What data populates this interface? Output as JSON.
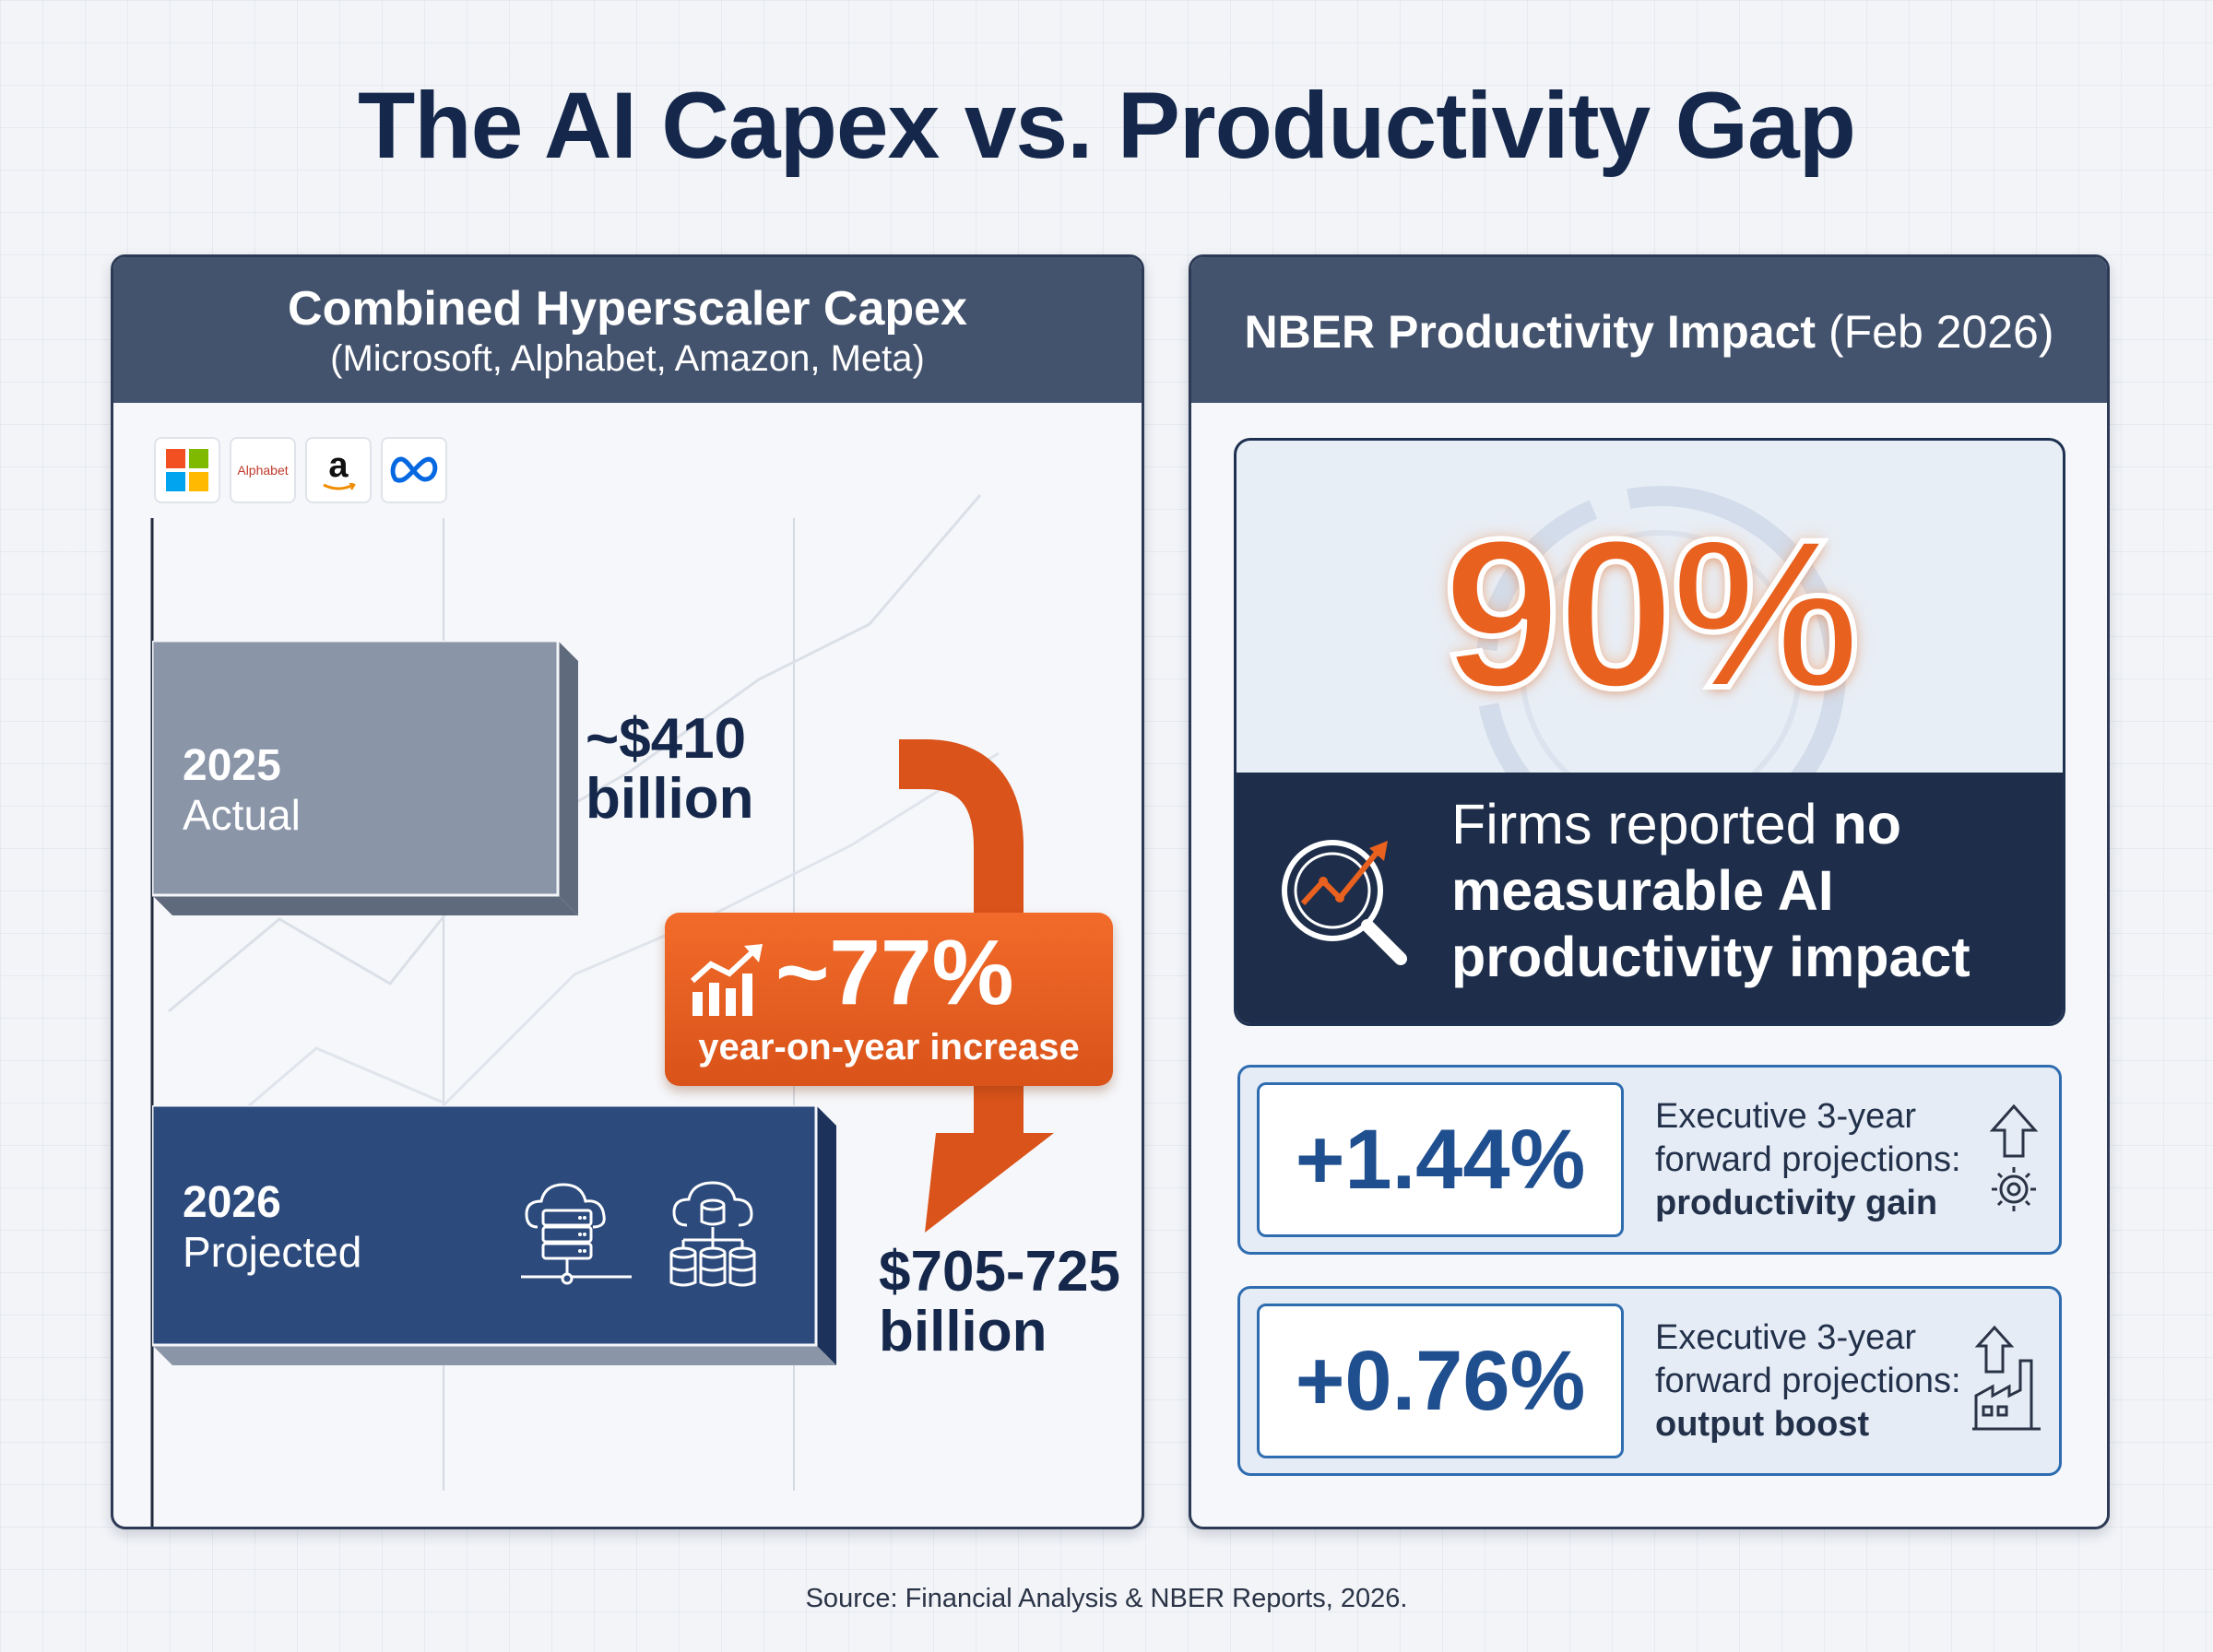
{
  "title": "The AI Capex vs. Productivity Gap",
  "capex_panel": {
    "title": "Combined Hyperscaler Capex",
    "subtitle": "(Microsoft, Alphabet, Amazon, Meta)",
    "logos": [
      "microsoft-logo",
      "alphabet-logo",
      "amazon-logo",
      "meta-logo"
    ],
    "alphabet_logo_text": "Alphabet",
    "amazon_logo_text": "a",
    "bars": [
      {
        "year": "2025",
        "kind": "Actual",
        "value_line1": "~$410",
        "value_line2": "billion",
        "value_billion": 410
      },
      {
        "year": "2026",
        "kind": "Projected",
        "value_line1": "$705-725",
        "value_line2": "billion",
        "value_billion_range": [
          705,
          725
        ]
      }
    ],
    "growth": {
      "value": "~77%",
      "caption": "year-on-year increase"
    }
  },
  "nber_panel": {
    "title_bold": "NBER Productivity Impact",
    "title_date": "(Feb 2026)",
    "stat": {
      "value": "90%",
      "text_normal": "Firms reported ",
      "text_bold_1": "no",
      "text_bold_2": "measurable AI productivity impact"
    },
    "metrics": [
      {
        "value": "+1.44%",
        "line1": "Executive 3-year",
        "line2": "forward projections:",
        "line3": "productivity gain",
        "icon": "arrow-up-gear-icon"
      },
      {
        "value": "+0.76%",
        "line1": "Executive 3-year",
        "line2": "forward projections:",
        "line3": "output boost",
        "icon": "factory-arrow-icon"
      }
    ]
  },
  "source": "Source: Financial Analysis & NBER Reports, 2026.",
  "colors": {
    "navy": "#15284b",
    "header_slate": "#44536d",
    "orange": "#e8611f",
    "bar_2025": "#8a95a8",
    "bar_2026": "#2c4a7c",
    "metric_blue": "#1f4f8f"
  }
}
